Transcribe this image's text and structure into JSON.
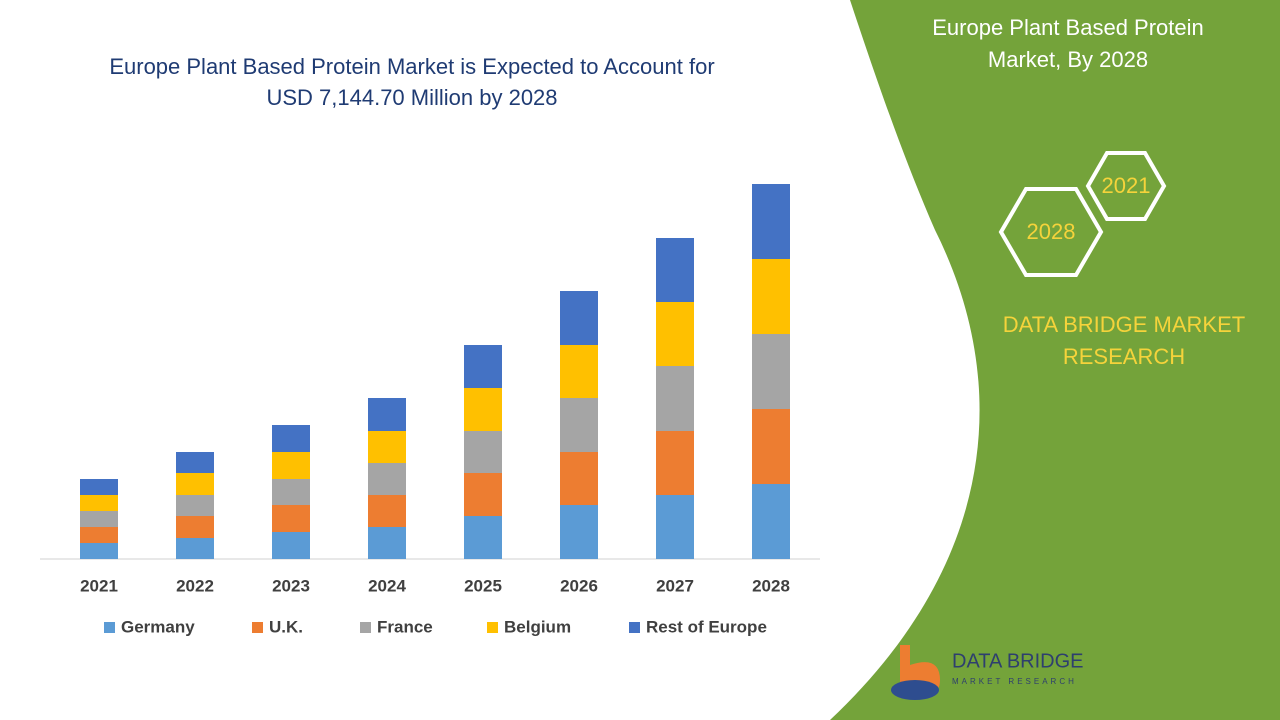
{
  "chart_data": {
    "type": "stacked-bar",
    "title": [
      "Europe Plant Based Protein Market is Expected to Account for",
      "USD 7,144.70 Million by 2028"
    ],
    "categories": [
      "2021",
      "2022",
      "2023",
      "2024",
      "2025",
      "2026",
      "2027",
      "2028"
    ],
    "series": [
      {
        "name": "Germany",
        "color": "#5b9bd5",
        "values": [
          16,
          21,
          27,
          32,
          43,
          54,
          64,
          75
        ]
      },
      {
        "name": "U.K.",
        "color": "#ed7d31",
        "values": [
          16,
          22,
          27,
          32,
          43,
          53,
          64,
          75
        ]
      },
      {
        "name": "France",
        "color": "#a5a5a5",
        "values": [
          16,
          21,
          26,
          32,
          42,
          54,
          65,
          75
        ]
      },
      {
        "name": "Belgium",
        "color": "#ffc000",
        "values": [
          16,
          22,
          27,
          32,
          43,
          53,
          64,
          75
        ]
      },
      {
        "name": "Rest of Europe",
        "color": "#4472c4",
        "values": [
          16,
          21,
          27,
          33,
          43,
          54,
          64,
          75
        ]
      }
    ]
  },
  "panel": {
    "title": [
      "Europe Plant Based Protein",
      "Market, By 2028"
    ],
    "hex": [
      "2021",
      "2028"
    ],
    "brand": [
      "DATA BRIDGE MARKET",
      "RESEARCH"
    ],
    "logo": "DATA BRIDGE",
    "logo_sub": "MARKET RESEARCH"
  }
}
